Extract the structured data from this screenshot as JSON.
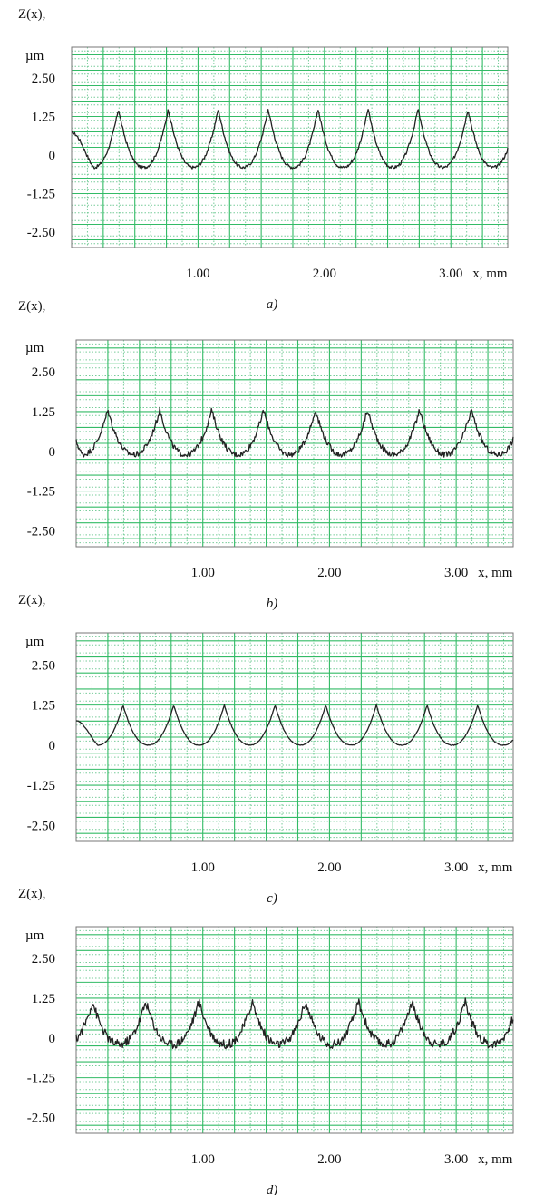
{
  "colors": {
    "grid_major": "#33bb66",
    "grid_minor": "#77cc99",
    "frame": "#777777",
    "trace": "#222222"
  },
  "chart_data": [
    {
      "type": "line",
      "panel_label": "a)",
      "ylabel_line1": "Z(x),",
      "ylabel_line2": "µm",
      "xlabel_suffix": "x, mm",
      "x_ticks": [
        "1.00",
        "2.00",
        "3.00"
      ],
      "y_ticks": [
        "2.50",
        "1.25",
        "0",
        "-1.25",
        "-2.50"
      ],
      "xlim": [
        0,
        3.45
      ],
      "ylim": [
        -3.0,
        3.5
      ],
      "grid": true,
      "profile": {
        "period": 0.395,
        "peak_x0": 0.37,
        "peak": 1.5,
        "trough": -0.4,
        "start": 0.7,
        "noise": 0.05
      }
    },
    {
      "type": "line",
      "panel_label": "b)",
      "ylabel_line1": "Z(x),",
      "ylabel_line2": "µm",
      "xlabel_suffix": "x, mm",
      "x_ticks": [
        "1.00",
        "2.00",
        "3.00"
      ],
      "y_ticks": [
        "2.50",
        "1.25",
        "0",
        "-1.25",
        "-2.50"
      ],
      "xlim": [
        0,
        3.45
      ],
      "ylim": [
        -3.0,
        3.5
      ],
      "grid": true,
      "profile": {
        "period": 0.41,
        "peak_x0": 0.25,
        "peak": 1.3,
        "trough": -0.1,
        "start": 0.3,
        "noise": 0.09
      }
    },
    {
      "type": "line",
      "panel_label": "c)",
      "ylabel_line1": "Z(x),",
      "ylabel_line2": "µm",
      "xlabel_suffix": "x, mm",
      "x_ticks": [
        "1.00",
        "2.00",
        "3.00"
      ],
      "y_ticks": [
        "2.50",
        "1.25",
        "0",
        "-1.25",
        "-2.50"
      ],
      "xlim": [
        0,
        3.45
      ],
      "ylim": [
        -3.0,
        3.5
      ],
      "grid": true,
      "profile": {
        "period": 0.4,
        "peak_x0": 0.37,
        "peak": 1.25,
        "trough": 0.0,
        "start": 0.75,
        "noise": 0.01
      }
    },
    {
      "type": "line",
      "panel_label": "d)",
      "ylabel_line1": "Z(x),",
      "ylabel_line2": "µm",
      "xlabel_suffix": "x, mm",
      "x_ticks": [
        "1.00",
        "2.00",
        "3.00"
      ],
      "y_ticks": [
        "2.50",
        "1.25",
        "0",
        "-1.25",
        "-2.50"
      ],
      "xlim": [
        0,
        3.45
      ],
      "ylim": [
        -3.0,
        3.5
      ],
      "grid": true,
      "profile": {
        "period": 0.42,
        "peak_x0": 0.13,
        "peak": 1.15,
        "trough": -0.2,
        "start": 0.0,
        "noise": 0.14
      }
    }
  ]
}
